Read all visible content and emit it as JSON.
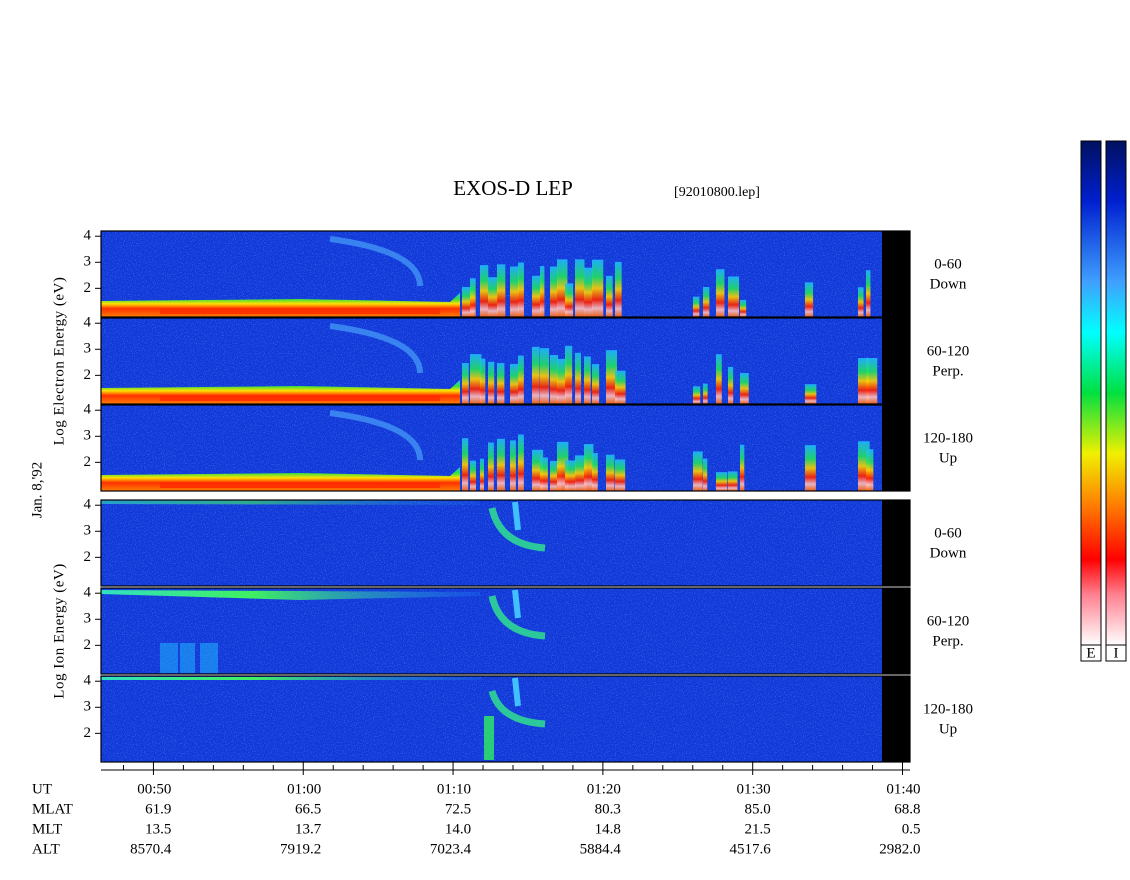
{
  "chart_data": {
    "type": "spectrogram",
    "title": "EXOS-D LEP",
    "subtitle": "[92010800.lep]",
    "date_label": "Jan. 8,'92",
    "ylim": [
      0.9,
      4.2
    ],
    "yticks": [
      2,
      3,
      4
    ],
    "xlim": [
      46.5,
      100.5
    ],
    "xticks": [
      {
        "value": 50,
        "label": "00:50"
      },
      {
        "value": 60,
        "label": "01:00"
      },
      {
        "value": 70,
        "label": "01:10"
      },
      {
        "value": 80,
        "label": "01:20"
      },
      {
        "value": 90,
        "label": "01:30"
      },
      {
        "value": 100,
        "label": "01:40"
      }
    ],
    "xminorticks": [
      48,
      52,
      54,
      56,
      58,
      62,
      64,
      66,
      68,
      72,
      74,
      76,
      78,
      82,
      84,
      86,
      88,
      92,
      94,
      96,
      98
    ],
    "species": [
      {
        "ylabel": "Log Electron Energy (eV)",
        "panels": [
          {
            "pitch": "0-60",
            "direction": "Down"
          },
          {
            "pitch": "60-120",
            "direction": "Perp."
          },
          {
            "pitch": "120-180",
            "direction": "Up"
          }
        ]
      },
      {
        "ylabel": "Log Ion Energy (eV)",
        "panels": [
          {
            "pitch": "0-60",
            "direction": "Down"
          },
          {
            "pitch": "60-120",
            "direction": "Perp."
          },
          {
            "pitch": "120-180",
            "direction": "Up"
          }
        ]
      }
    ],
    "ephemeris": {
      "ut_label": "UT",
      "rows": [
        {
          "label": "MLAT",
          "values": [
            "61.9",
            "66.5",
            "72.5",
            "80.3",
            "85.0",
            "68.8"
          ]
        },
        {
          "label": "MLT",
          "values": [
            "13.5",
            "13.7",
            "14.0",
            "14.8",
            "21.5",
            "0.5"
          ]
        },
        {
          "label": "ALT",
          "values": [
            "8570.4",
            "7919.2",
            "7023.4",
            "5884.4",
            "4517.6",
            "2982.0"
          ]
        }
      ]
    },
    "colorbars": [
      "E",
      "I"
    ]
  }
}
